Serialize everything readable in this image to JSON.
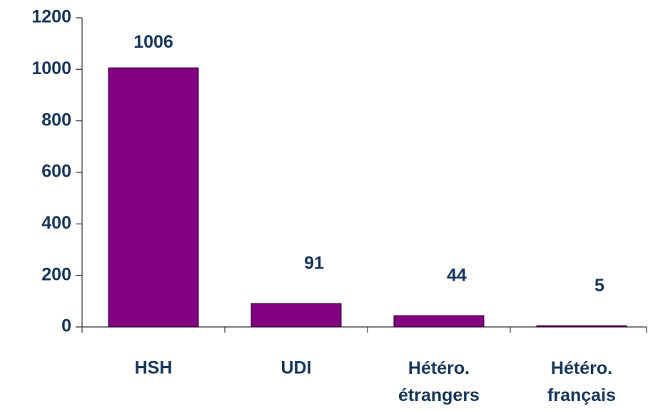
{
  "chart_data": {
    "type": "bar",
    "categories": [
      "HSH",
      "UDI",
      "Hétéro. étrangers",
      "Hétéro. français"
    ],
    "values": [
      1006,
      91,
      44,
      5
    ],
    "color": "#800080",
    "ylim": [
      0,
      1200
    ],
    "yticks": [
      0,
      200,
      400,
      600,
      800,
      1000,
      1200
    ],
    "grid": false
  }
}
